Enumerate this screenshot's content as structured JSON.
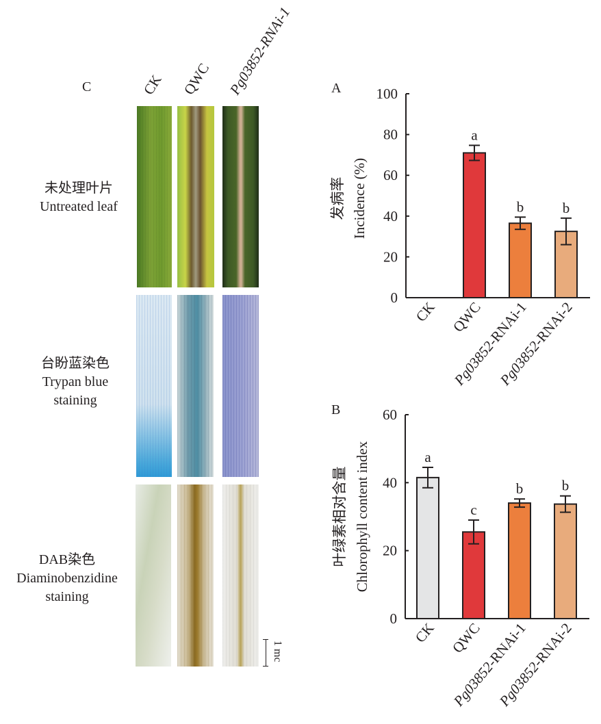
{
  "panel_c": {
    "letter": "C",
    "columns": [
      "CK",
      "QWC",
      "Pg03852-RNAi-1"
    ],
    "rows": [
      {
        "label_cn": "未处理叶片",
        "label_en": "Untreated leaf"
      },
      {
        "label_cn": "台盼蓝染色",
        "label_en": "Trypan blue",
        "label_en2": "staining"
      },
      {
        "label_cn": "DAB染色",
        "label_en": "Diaminobenzidine",
        "label_en2": "staining"
      }
    ],
    "scale_bar": "1 mc"
  },
  "chart_data": [
    {
      "panel": "A",
      "type": "bar",
      "categories": [
        "CK",
        "QWC",
        "Pg03852-RNAi-1",
        "Pg03852-RNAi-2"
      ],
      "values": [
        0,
        71,
        36.5,
        32.5
      ],
      "error": [
        0,
        3.7,
        3,
        6.5
      ],
      "significance": [
        "",
        "a",
        "b",
        "b"
      ],
      "colors": [
        "#e4e5e6",
        "#e0393b",
        "#ec7f3d",
        "#e8ab7c"
      ],
      "ylabel_cn": "发病率",
      "ylabel": "Incidence (%)",
      "xlabel": "",
      "ylim": [
        0,
        100
      ],
      "yticks": [
        0,
        20,
        40,
        60,
        80,
        100
      ],
      "grid": false
    },
    {
      "panel": "B",
      "type": "bar",
      "categories": [
        "CK",
        "QWC",
        "Pg03852-RNAi-1",
        "Pg03852-RNAi-2"
      ],
      "values": [
        41.5,
        25.5,
        34,
        33.7
      ],
      "error": [
        3,
        3.5,
        1.2,
        2.4
      ],
      "significance": [
        "a",
        "c",
        "b",
        "b"
      ],
      "colors": [
        "#e4e5e6",
        "#e0393b",
        "#ec7f3d",
        "#e8ab7c"
      ],
      "ylabel_cn": "叶绿素相对含量",
      "ylabel": "Chlorophyll content index",
      "xlabel": "",
      "ylim": [
        0,
        60
      ],
      "yticks": [
        0,
        20,
        40,
        60
      ],
      "grid": false
    }
  ]
}
